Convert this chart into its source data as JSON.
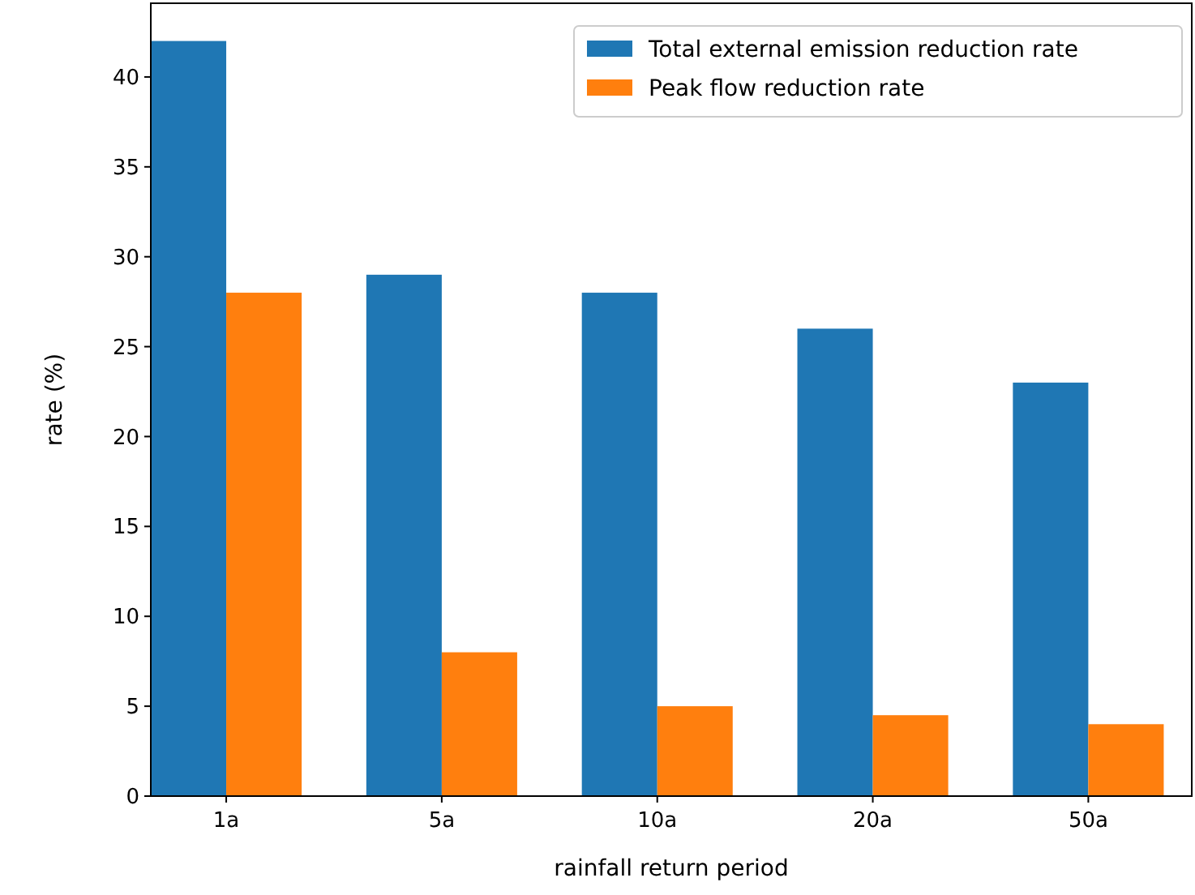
{
  "chart_data": {
    "type": "bar",
    "xlabel": "rainfall return period",
    "ylabel": "rate (%)",
    "categories": [
      "1a",
      "5a",
      "10a",
      "20a",
      "50a"
    ],
    "series": [
      {
        "name": "Total external emission reduction rate",
        "color": "#1f77b4",
        "values": [
          42,
          29,
          28,
          26,
          23
        ]
      },
      {
        "name": "Peak flow reduction rate",
        "color": "#ff7f0e",
        "values": [
          28,
          8,
          5,
          4.5,
          4
        ]
      }
    ],
    "ylim": [
      0,
      44.1
    ],
    "yticks": [
      0,
      5,
      10,
      15,
      20,
      25,
      30,
      35,
      40
    ],
    "legend": "top right"
  }
}
